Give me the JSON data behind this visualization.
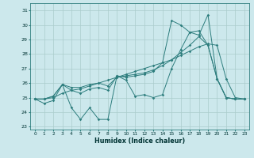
{
  "bg_color": "#cce8ec",
  "grid_color": "#aacccc",
  "line_color": "#2d7d7d",
  "xlabel": "Humidex (Indice chaleur)",
  "xlim": [
    -0.5,
    23.5
  ],
  "ylim": [
    22.8,
    31.5
  ],
  "yticks": [
    23,
    24,
    25,
    26,
    27,
    28,
    29,
    30,
    31
  ],
  "xticks": [
    0,
    1,
    2,
    3,
    4,
    5,
    6,
    7,
    8,
    9,
    10,
    11,
    12,
    13,
    14,
    15,
    16,
    17,
    18,
    19,
    20,
    21,
    22,
    23
  ],
  "series": [
    [
      24.9,
      24.6,
      24.8,
      25.9,
      24.3,
      23.5,
      24.3,
      23.5,
      23.5,
      26.5,
      26.2,
      25.1,
      25.2,
      25.0,
      25.2,
      27.0,
      28.3,
      29.5,
      29.6,
      28.6,
      26.3,
      25.0,
      24.9,
      24.9
    ],
    [
      24.9,
      24.9,
      25.0,
      25.3,
      25.5,
      25.6,
      25.8,
      26.0,
      26.2,
      26.4,
      26.6,
      26.8,
      27.0,
      27.2,
      27.4,
      27.6,
      27.9,
      28.2,
      28.5,
      28.7,
      28.6,
      26.3,
      25.0,
      24.9
    ],
    [
      24.9,
      24.9,
      25.1,
      25.9,
      25.7,
      25.7,
      25.9,
      26.0,
      25.8,
      26.4,
      26.5,
      26.6,
      26.7,
      26.9,
      27.2,
      27.6,
      28.1,
      28.6,
      29.2,
      28.6,
      26.3,
      25.0,
      24.9,
      24.9
    ],
    [
      24.9,
      24.9,
      25.1,
      25.9,
      25.5,
      25.3,
      25.6,
      25.7,
      25.5,
      26.5,
      26.4,
      26.5,
      26.6,
      26.8,
      27.4,
      30.3,
      30.0,
      29.5,
      29.3,
      30.7,
      26.3,
      25.0,
      24.9,
      24.9
    ]
  ]
}
